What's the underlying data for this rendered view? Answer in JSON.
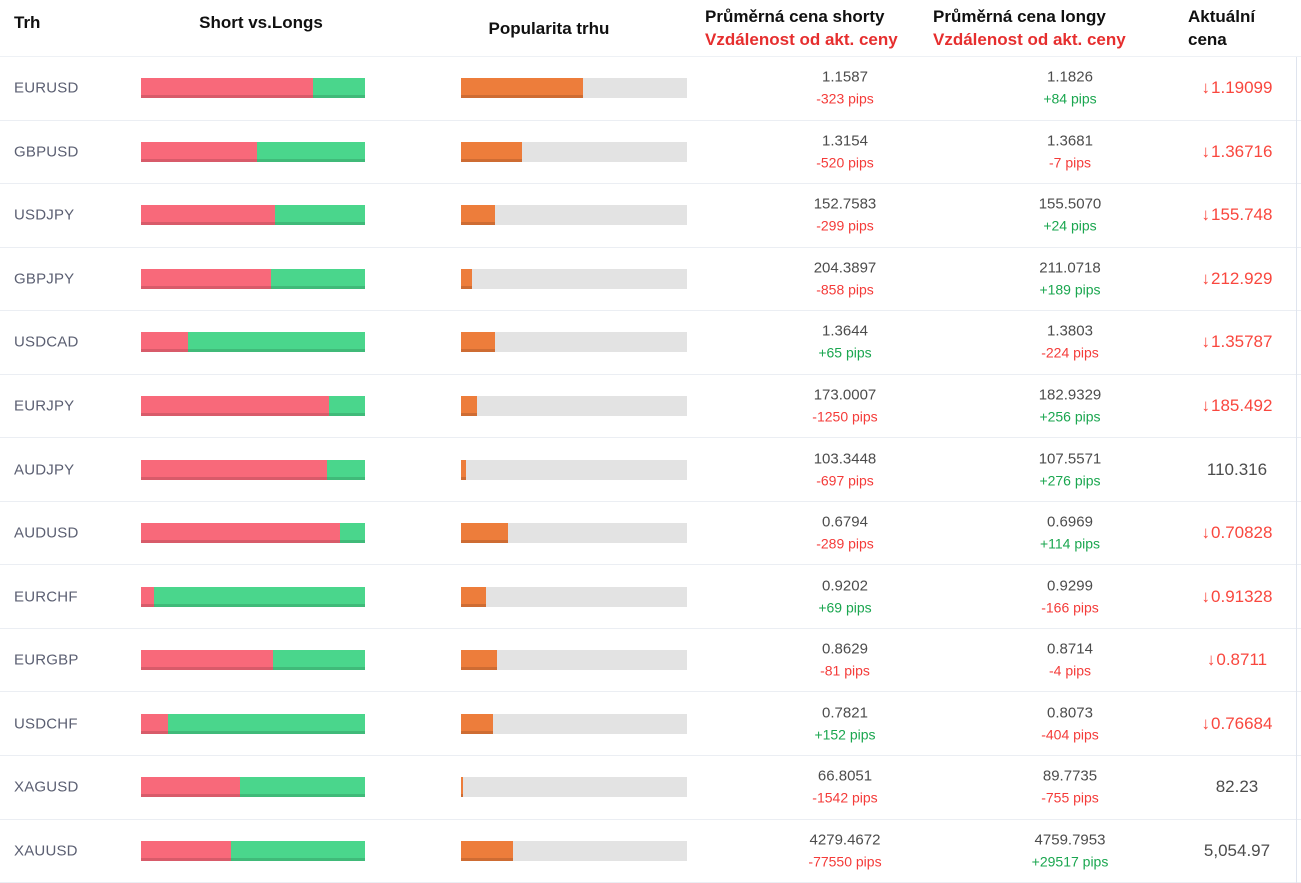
{
  "header": {
    "market": "Trh",
    "short_vs_longs": "Short vs.Longs",
    "popularity": "Popularita trhu",
    "avg_short_line1": "Průměrná cena shorty",
    "avg_short_line2": "Vzdálenost od akt. ceny",
    "avg_long_line1": "Průměrná cena longy",
    "avg_long_line2": "Vzdálenost od akt. ceny",
    "current_line1": "Aktuální",
    "current_line2": "cena"
  },
  "icons": {
    "down_arrow": "↓"
  },
  "colors": {
    "shorts": "#f8697a",
    "longs": "#4ad68c",
    "popularity": "#ed7d3b",
    "track": "#e3e3e3",
    "pips_neg": "#f43b39",
    "pips_pos": "#1aa64f",
    "price_down": "#f9473e",
    "header_red": "#e62e2e"
  },
  "rows": [
    {
      "market": "EURUSD",
      "short_pct": 77,
      "popularity_pct": 54,
      "short_price": "1.1587",
      "short_pips": "-323 pips",
      "long_price": "1.1826",
      "long_pips": "+84 pips",
      "current": "1.19099",
      "direction": "down"
    },
    {
      "market": "GBPUSD",
      "short_pct": 52,
      "popularity_pct": 27,
      "short_price": "1.3154",
      "short_pips": "-520 pips",
      "long_price": "1.3681",
      "long_pips": "-7 pips",
      "current": "1.36716",
      "direction": "down"
    },
    {
      "market": "USDJPY",
      "short_pct": 60,
      "popularity_pct": 15,
      "short_price": "152.7583",
      "short_pips": "-299 pips",
      "long_price": "155.5070",
      "long_pips": "+24 pips",
      "current": "155.748",
      "direction": "down"
    },
    {
      "market": "GBPJPY",
      "short_pct": 58,
      "popularity_pct": 5,
      "short_price": "204.3897",
      "short_pips": "-858 pips",
      "long_price": "211.0718",
      "long_pips": "+189 pips",
      "current": "212.929",
      "direction": "down"
    },
    {
      "market": "USDCAD",
      "short_pct": 21,
      "popularity_pct": 15,
      "short_price": "1.3644",
      "short_pips": "+65 pips",
      "long_price": "1.3803",
      "long_pips": "-224 pips",
      "current": "1.35787",
      "direction": "down"
    },
    {
      "market": "EURJPY",
      "short_pct": 84,
      "popularity_pct": 7,
      "short_price": "173.0007",
      "short_pips": "-1250 pips",
      "long_price": "182.9329",
      "long_pips": "+256 pips",
      "current": "185.492",
      "direction": "down"
    },
    {
      "market": "AUDJPY",
      "short_pct": 83,
      "popularity_pct": 2,
      "short_price": "103.3448",
      "short_pips": "-697 pips",
      "long_price": "107.5571",
      "long_pips": "+276 pips",
      "current": "110.316",
      "direction": "none"
    },
    {
      "market": "AUDUSD",
      "short_pct": 89,
      "popularity_pct": 21,
      "short_price": "0.6794",
      "short_pips": "-289 pips",
      "long_price": "0.6969",
      "long_pips": "+114 pips",
      "current": "0.70828",
      "direction": "down"
    },
    {
      "market": "EURCHF",
      "short_pct": 6,
      "popularity_pct": 11,
      "short_price": "0.9202",
      "short_pips": "+69 pips",
      "long_price": "0.9299",
      "long_pips": "-166 pips",
      "current": "0.91328",
      "direction": "down"
    },
    {
      "market": "EURGBP",
      "short_pct": 59,
      "popularity_pct": 16,
      "short_price": "0.8629",
      "short_pips": "-81 pips",
      "long_price": "0.8714",
      "long_pips": "-4 pips",
      "current": "0.8711",
      "direction": "down"
    },
    {
      "market": "USDCHF",
      "short_pct": 12,
      "popularity_pct": 14,
      "short_price": "0.7821",
      "short_pips": "+152 pips",
      "long_price": "0.8073",
      "long_pips": "-404 pips",
      "current": "0.76684",
      "direction": "down"
    },
    {
      "market": "XAGUSD",
      "short_pct": 44,
      "popularity_pct": 1,
      "short_price": "66.8051",
      "short_pips": "-1542 pips",
      "long_price": "89.7735",
      "long_pips": "-755 pips",
      "current": "82.23",
      "direction": "none"
    },
    {
      "market": "XAUUSD",
      "short_pct": 40,
      "popularity_pct": 23,
      "short_price": "4279.4672",
      "short_pips": "-77550 pips",
      "long_price": "4759.7953",
      "long_pips": "+29517 pips",
      "current": "5,054.97",
      "direction": "none"
    }
  ]
}
